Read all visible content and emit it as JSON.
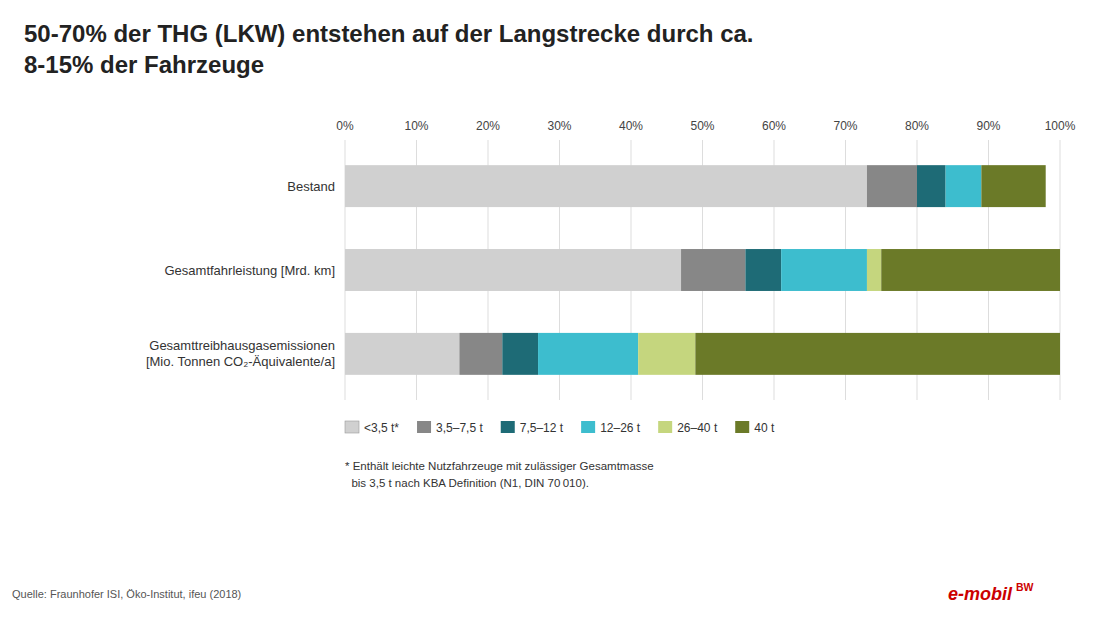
{
  "chart_data": {
    "type": "bar",
    "orientation": "horizontal",
    "stacked": true,
    "title": "50-70% der THG (LKW) entstehen auf der Langstrecke durch ca.\n8-15% der Fahrzeuge",
    "categories": [
      "Gesamttreibhausgasemissionen\n[Mio. Tonnen CO₂-Äquivalente/a]",
      "Gesamtfahrleistung [Mrd. km]",
      "Bestand"
    ],
    "series": [
      {
        "name": "<3,5 t*",
        "color": "#d0d0d0",
        "values": [
          16,
          47,
          73
        ]
      },
      {
        "name": "3,5–7,5 t",
        "color": "#878787",
        "values": [
          6,
          9,
          7
        ]
      },
      {
        "name": "7,5–12 t",
        "color": "#1e6b76",
        "values": [
          5,
          5,
          4
        ]
      },
      {
        "name": "12–26 t",
        "color": "#3dbdce",
        "values": [
          14,
          12,
          5
        ]
      },
      {
        "name": "26–40 t",
        "color": "#c5d67e",
        "values": [
          8,
          2,
          0
        ]
      },
      {
        "name": "40 t",
        "color": "#6b7a28",
        "values": [
          51,
          25,
          9
        ]
      }
    ],
    "xlim": [
      0,
      100
    ],
    "xticks": [
      {
        "value": 0,
        "label": "0%"
      },
      {
        "value": 10,
        "label": "10%"
      },
      {
        "value": 20,
        "label": "20%"
      },
      {
        "value": 30,
        "label": "30%"
      },
      {
        "value": 40,
        "label": "40%"
      },
      {
        "value": 50,
        "label": "50%"
      },
      {
        "value": 60,
        "label": "60%"
      },
      {
        "value": 70,
        "label": "70%"
      },
      {
        "value": 80,
        "label": "80%"
      },
      {
        "value": 90,
        "label": "90%"
      },
      {
        "value": 100,
        "label": "100%"
      }
    ],
    "grid": true,
    "legend": "bottom",
    "annotations": [
      "* Enthält leichte Nutzfahrzeuge mit zulässiger Gesamtmasse",
      "  bis 3,5 t nach KBA Definition (N1, DIN 70 010).",
      "Quelle: Fraunhofer ISI, Öko-Institut, ifeu (2018)",
      "e-mobil",
      "BW"
    ]
  }
}
